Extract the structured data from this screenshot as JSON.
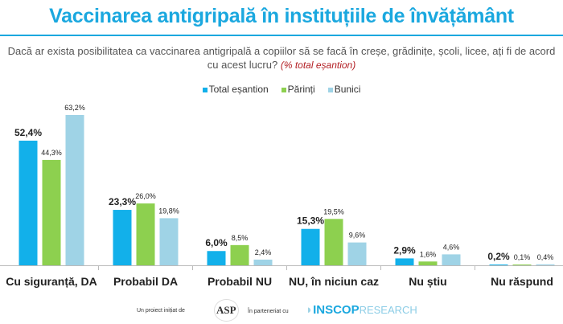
{
  "chart_data": {
    "type": "bar",
    "title": "Vaccinarea antigripală în instituțiile de învățământ",
    "subtitle": "Dacă ar exista posibilitatea ca vaccinarea antigripală a copiilor să se facă în creșe, grădinițe, școli, licee, ați fi de acord cu acest lucru?",
    "subtitle_note": "(% total eșantion)",
    "categories": [
      "Cu siguranță, DA",
      "Probabil DA",
      "Probabil NU",
      "NU, în niciun caz",
      "Nu știu",
      "Nu răspund"
    ],
    "series": [
      {
        "name": "Total eșantion",
        "color": "#12b0ea",
        "values": [
          52.4,
          23.3,
          6.0,
          15.3,
          2.9,
          0.2
        ],
        "labels": [
          "52,4%",
          "23,3%",
          "6,0%",
          "15,3%",
          "2,9%",
          "0,2%"
        ]
      },
      {
        "name": "Părinți",
        "color": "#8dd04f",
        "values": [
          44.3,
          26.0,
          8.5,
          19.5,
          1.6,
          0.1
        ],
        "labels": [
          "44,3%",
          "26,0%",
          "8,5%",
          "19,5%",
          "1,6%",
          "0,1%"
        ]
      },
      {
        "name": "Bunici",
        "color": "#9fd3e6",
        "values": [
          63.2,
          19.8,
          2.4,
          9.6,
          4.6,
          0.4
        ],
        "labels": [
          "63,2%",
          "19,8%",
          "2,4%",
          "9,6%",
          "4,6%",
          "0,4%"
        ]
      }
    ],
    "ylim": [
      0,
      65
    ],
    "grid": false,
    "legend": "top"
  },
  "footer": {
    "initiated": "Un proiect inițiat de",
    "logo1": "ASP",
    "partner": "În parteneriat cu",
    "logo2a": "INSCOP",
    "logo2b": "RESEARCH"
  }
}
